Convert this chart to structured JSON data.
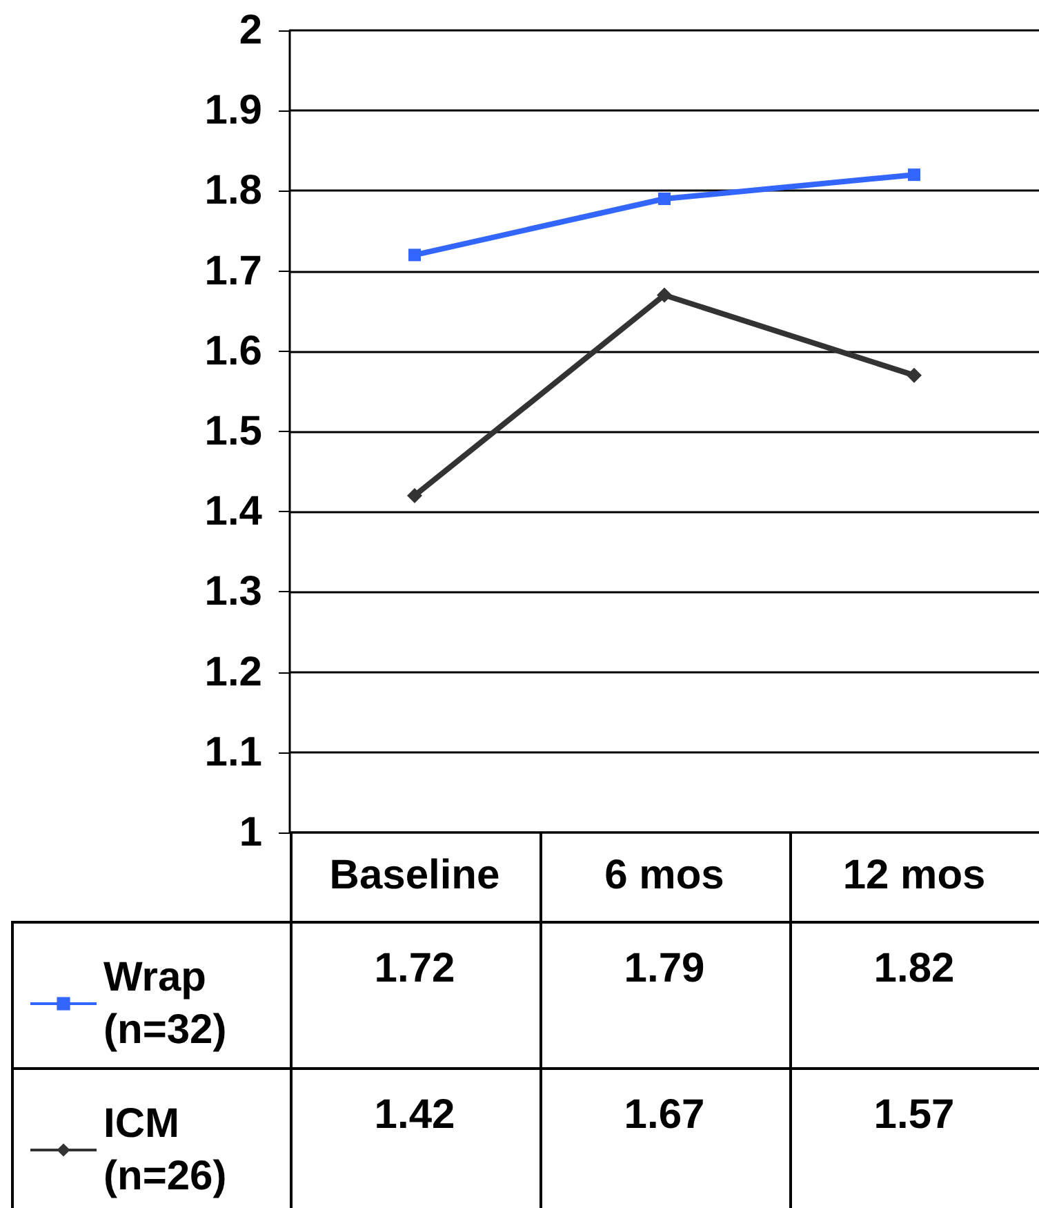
{
  "chart_data": {
    "type": "line",
    "categories": [
      "Baseline",
      "6 mos",
      "12 mos"
    ],
    "series": [
      {
        "name": "Wrap (n=32)",
        "color": "#3366ff",
        "marker": "square",
        "values": [
          1.72,
          1.79,
          1.82
        ]
      },
      {
        "name": "ICM (n=26)",
        "color": "#333333",
        "marker": "diamond",
        "values": [
          1.42,
          1.67,
          1.57
        ]
      }
    ],
    "ylim": [
      1,
      2
    ],
    "yticks": [
      1,
      1.1,
      1.2,
      1.3,
      1.4,
      1.5,
      1.6,
      1.7,
      1.8,
      1.9,
      2
    ],
    "grid": "y",
    "legend": "bottom left",
    "data_labels": true,
    "line_style": "solid"
  }
}
